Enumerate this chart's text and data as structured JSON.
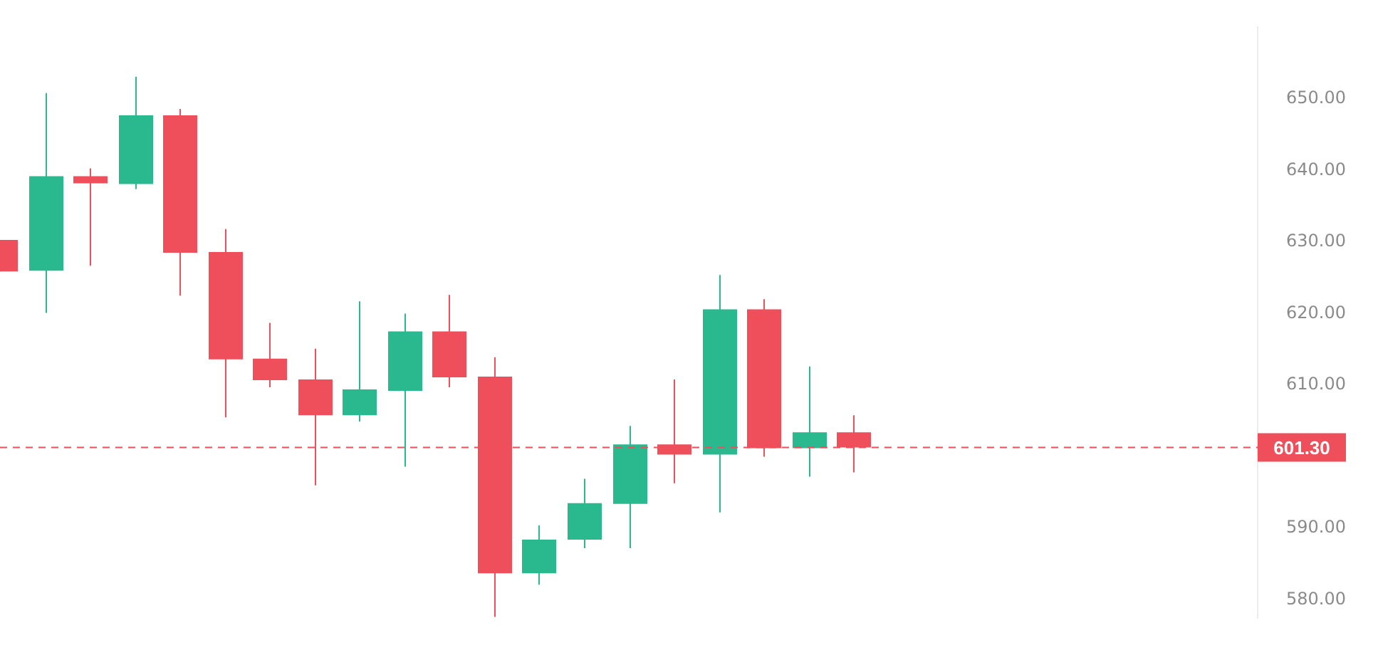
{
  "chart_data": {
    "type": "candlestick",
    "categories": [
      null,
      null,
      null,
      null,
      null,
      null,
      null,
      null,
      null,
      null,
      null,
      null,
      null,
      null,
      null,
      null,
      null,
      null,
      null,
      null,
      null,
      null,
      null,
      null,
      null,
      null,
      null,
      null,
      null
    ],
    "ohlc": [
      [
        630.3,
        630.3,
        625.9,
        625.9
      ],
      [
        626.0,
        650.8,
        620.1,
        639.2
      ],
      [
        639.2,
        640.3,
        626.7,
        638.2
      ],
      [
        638.1,
        653.1,
        637.4,
        647.7
      ],
      [
        647.7,
        648.6,
        622.5,
        628.5
      ],
      [
        628.6,
        631.8,
        605.5,
        613.6
      ],
      [
        613.7,
        618.7,
        609.7,
        610.7
      ],
      [
        610.8,
        615.1,
        596.0,
        605.8
      ],
      [
        605.8,
        621.7,
        604.9,
        609.4
      ],
      [
        609.2,
        620.0,
        598.6,
        617.5
      ],
      [
        617.5,
        622.6,
        609.7,
        611.1
      ],
      [
        611.2,
        613.9,
        577.6,
        583.7
      ],
      [
        583.7,
        590.4,
        582.1,
        588.4
      ],
      [
        588.4,
        596.9,
        587.2,
        593.5
      ],
      [
        593.4,
        604.3,
        587.2,
        601.7
      ],
      [
        601.7,
        610.8,
        596.3,
        600.3
      ],
      [
        600.3,
        625.4,
        592.2,
        620.6
      ],
      [
        620.6,
        622.0,
        600.0,
        601.2
      ],
      [
        601.2,
        612.6,
        597.2,
        603.4
      ],
      [
        603.4,
        605.8,
        597.8,
        601.3
      ],
      null,
      null,
      null,
      null,
      null,
      null,
      null,
      null,
      null
    ],
    "colors": [
      "#ef4f5a",
      "#2ab98f",
      "#ef4f5a",
      "#2ab98f",
      "#ef4f5a",
      "#ef4f5a",
      "#ef4f5a",
      "#ef4f5a",
      "#2ab98f",
      "#2ab98f",
      "#ef4f5a",
      "#ef4f5a",
      "#2ab98f",
      "#2ab98f",
      "#2ab98f",
      "#ef4f5a",
      "#2ab98f",
      "#ef4f5a",
      "#2ab98f",
      "#ef4f5a",
      null,
      null,
      null,
      null,
      null,
      null,
      null,
      null,
      null
    ],
    "ylim": [
      577.5,
      660
    ],
    "yticks": [
      {
        "value": 580,
        "label": "580.00"
      },
      {
        "value": 590,
        "label": "590.00"
      },
      {
        "value": 610,
        "label": "610.00"
      },
      {
        "value": 620,
        "label": "620.00"
      },
      {
        "value": 630,
        "label": "630.00"
      },
      {
        "value": 640,
        "label": "640.00"
      },
      {
        "value": 650,
        "label": "650.00"
      }
    ],
    "ref_lines": [
      {
        "axis": "y",
        "value": 601.3,
        "label": "601.30",
        "color": "#ef4f5a",
        "line_style": "dashed"
      }
    ],
    "grid": false,
    "legend": false
  }
}
